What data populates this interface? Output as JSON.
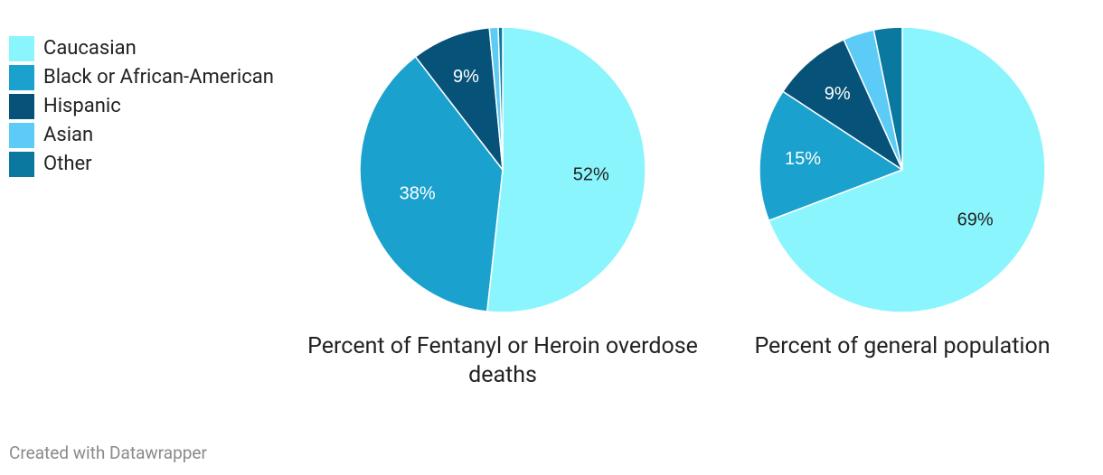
{
  "legend": [
    {
      "label": "Caucasian",
      "color": "#8af5fd"
    },
    {
      "label": "Black or African-American",
      "color": "#1aa1cd"
    },
    {
      "label": "Hispanic",
      "color": "#065278"
    },
    {
      "label": "Asian",
      "color": "#5ccbf6"
    },
    {
      "label": "Other",
      "color": "#0a789f"
    }
  ],
  "chart_data": [
    {
      "type": "pie",
      "title": "Percent of Fentanyl or Heroin overdose deaths",
      "categories": [
        "Caucasian",
        "Black or African-American",
        "Hispanic",
        "Asian",
        "Other"
      ],
      "values": [
        52,
        38,
        9,
        1,
        0.5
      ],
      "labels": [
        "52%",
        "38%",
        "9%",
        "",
        ""
      ]
    },
    {
      "type": "pie",
      "title": "Percent of general population",
      "categories": [
        "Caucasian",
        "Black or African-American",
        "Hispanic",
        "Asian",
        "Other"
      ],
      "values": [
        69,
        15,
        9,
        3.5,
        3.2
      ],
      "labels": [
        "69%",
        "15%",
        "9%",
        "",
        ""
      ]
    }
  ],
  "footer": {
    "credit": "Created with Datawrapper"
  }
}
